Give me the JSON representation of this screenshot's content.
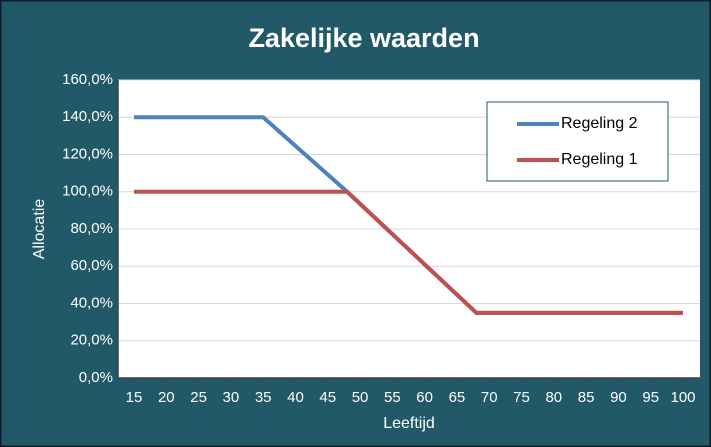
{
  "chart_data": {
    "type": "line",
    "title": "Zakelijke waarden",
    "xlabel": "Leeftijd",
    "ylabel": "Allocatie",
    "x": [
      15,
      35,
      48,
      68,
      100
    ],
    "series": [
      {
        "name": "Regeling 2",
        "color": "#4f81bd",
        "values": [
          140,
          140,
          100,
          35,
          35
        ]
      },
      {
        "name": "Regeling 1",
        "color": "#c0504d",
        "values": [
          100,
          100,
          100,
          35,
          35
        ]
      }
    ],
    "xlim": [
      15,
      100
    ],
    "xticks": [
      15,
      20,
      25,
      30,
      35,
      40,
      45,
      50,
      55,
      60,
      65,
      70,
      75,
      80,
      85,
      90,
      95,
      100
    ],
    "ylim": [
      0,
      160
    ],
    "yticks": [
      {
        "value": 0,
        "label": "0,0%"
      },
      {
        "value": 20,
        "label": "20,0%"
      },
      {
        "value": 40,
        "label": "40,0%"
      },
      {
        "value": 60,
        "label": "60,0%"
      },
      {
        "value": 80,
        "label": "80,0%"
      },
      {
        "value": 100,
        "label": "100,0%"
      },
      {
        "value": 120,
        "label": "120,0%"
      },
      {
        "value": 140,
        "label": "140,0%"
      },
      {
        "value": 160,
        "label": "160,0%"
      }
    ],
    "grid": true,
    "legend": "upper right"
  }
}
